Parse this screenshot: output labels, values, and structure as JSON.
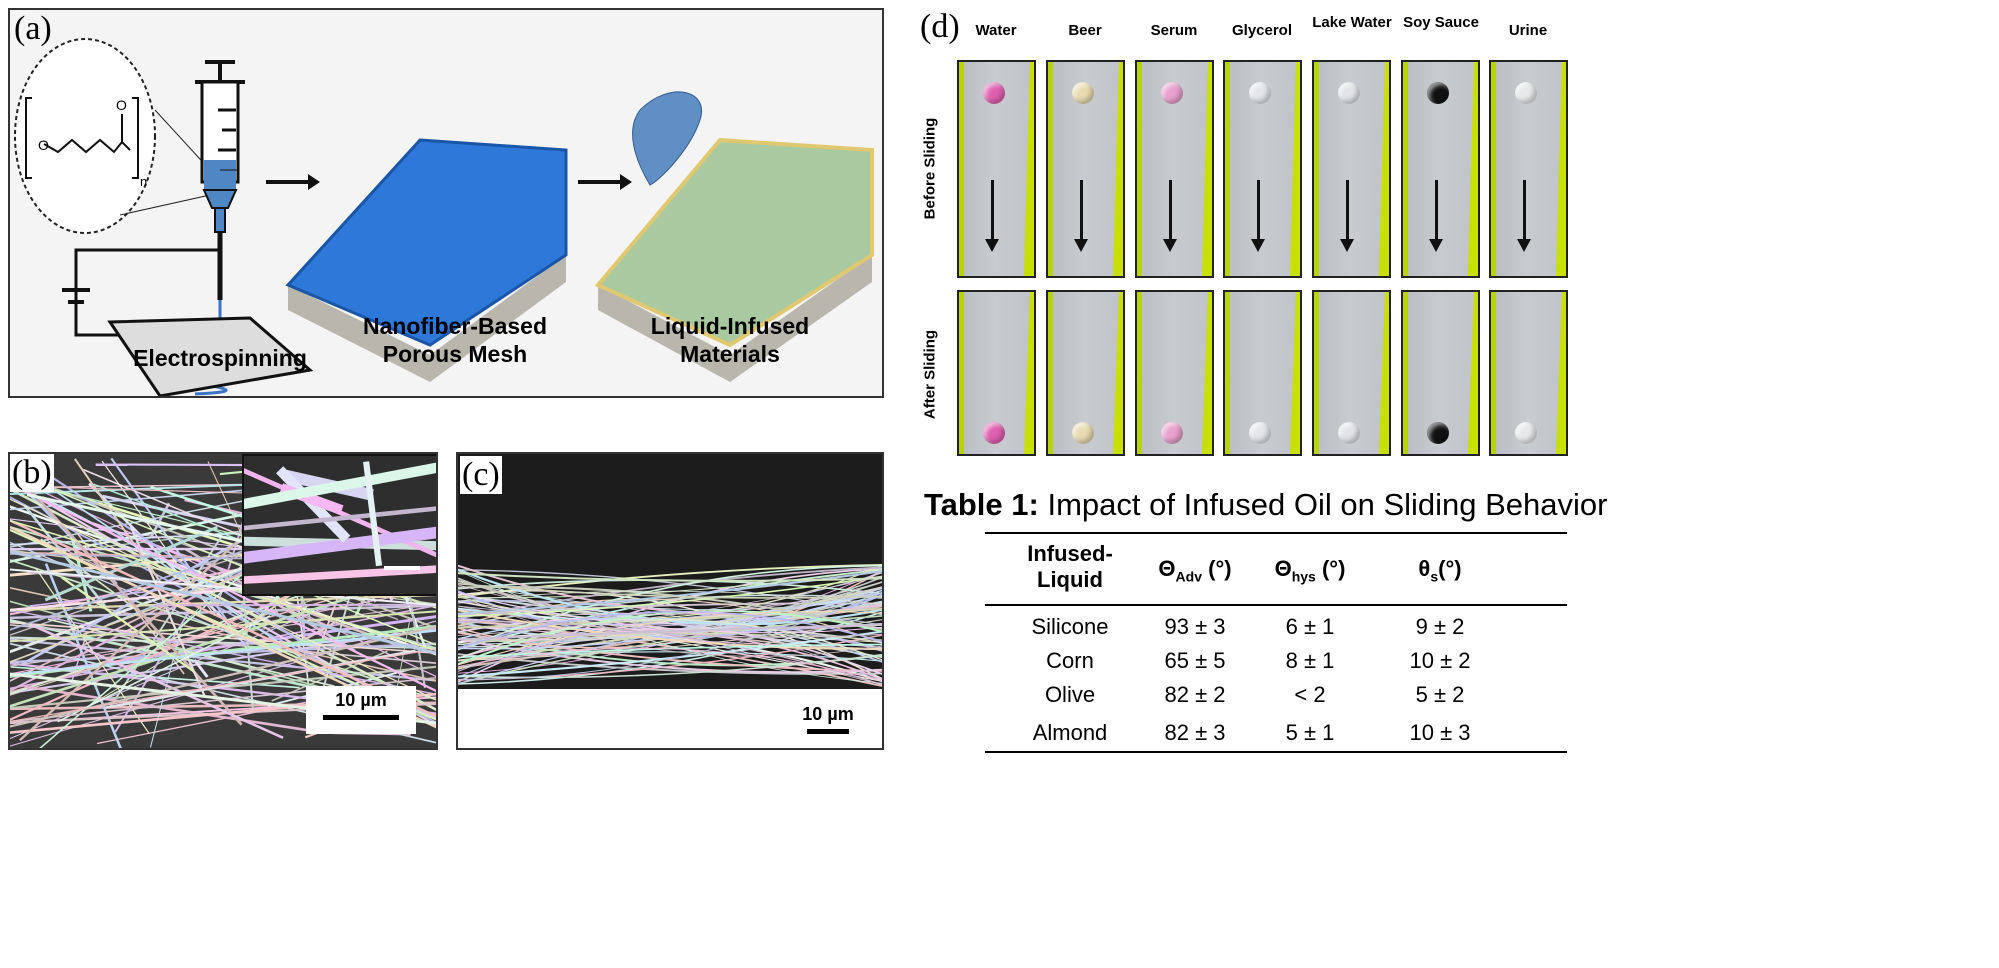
{
  "panel_a": {
    "label": "(a)",
    "steps": [
      "Electrospinning",
      "Nanofiber-Based Porous Mesh",
      "Liquid-Infused Materials"
    ],
    "polymer_subscript": "n",
    "polymer_atom": "O"
  },
  "panel_b": {
    "label": "(b)",
    "scale_bar": "10 µm"
  },
  "panel_c": {
    "label": "(c)",
    "scale_bar": "10 µm"
  },
  "panel_d": {
    "label": "(d)",
    "liquids": [
      {
        "name": "Water",
        "color": "#e060b0"
      },
      {
        "name": "Beer",
        "color": "#e8dcb0"
      },
      {
        "name": "Serum",
        "color": "#e8a0cc"
      },
      {
        "name": "Glycerol",
        "color": "#e4e6ea"
      },
      {
        "name": "Lake Water",
        "color": "#e2e4e8"
      },
      {
        "name": "Soy Sauce",
        "color": "#111111"
      },
      {
        "name": "Urine",
        "color": "#e6e8ea"
      }
    ],
    "rows": [
      "Before Sliding",
      "After Sliding"
    ]
  },
  "table": {
    "title_bold": "Table 1:",
    "title_rest": " Impact of Infused Oil on Sliding Behavior",
    "headers": [
      {
        "main": "Infused-\nLiquid",
        "sub": ""
      },
      {
        "main": "Θ",
        "sub": "Adv",
        "tail": " (°)"
      },
      {
        "main": "Θ",
        "sub": "hys",
        "tail": " (°)"
      },
      {
        "main": "θ",
        "sub": "s",
        "tail": "(°)"
      }
    ],
    "rows": [
      [
        "Silicone",
        "93 ± 3",
        "6 ± 1",
        "9 ± 2"
      ],
      [
        "Corn",
        "65 ± 5",
        "8 ± 1",
        "10 ± 2"
      ],
      [
        "Olive",
        "82 ± 2",
        "< 2",
        "5 ± 2"
      ],
      [
        "Almond",
        "82 ± 3",
        "5 ± 1",
        "10 ± 3"
      ]
    ]
  }
}
